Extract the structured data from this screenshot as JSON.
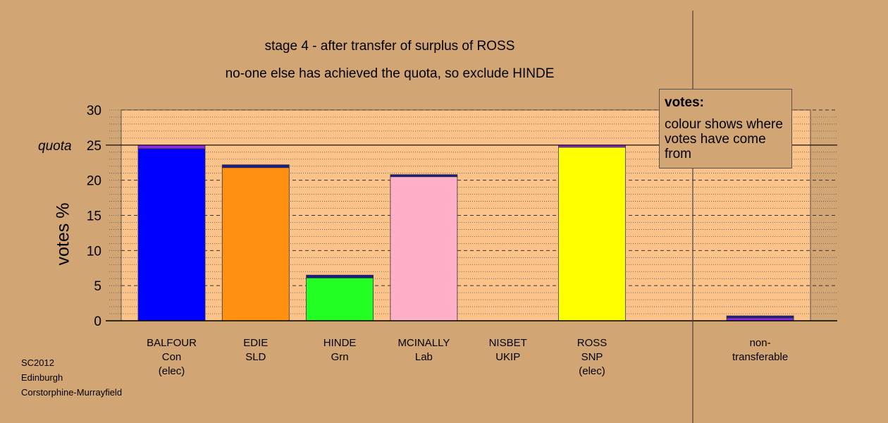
{
  "chart_data": {
    "type": "bar",
    "title": "stage 4 - after transfer of surplus of ROSS",
    "subtitle": "no-one else has achieved the quota, so exclude HINDE",
    "ylabel": "votes %",
    "ylim": [
      0,
      30
    ],
    "yticks": [
      "0",
      "5",
      "10",
      "15",
      "20",
      "25",
      "30"
    ],
    "quota_label": "quota",
    "quota_value": 25,
    "categories": [
      {
        "name": "BALFOUR",
        "party": "Con",
        "note": "(elec)"
      },
      {
        "name": "EDIE",
        "party": "SLD",
        "note": ""
      },
      {
        "name": "HINDE",
        "party": "Grn",
        "note": ""
      },
      {
        "name": "MCINALLY",
        "party": "Lab",
        "note": ""
      },
      {
        "name": "NISBET",
        "party": "UKIP",
        "note": ""
      },
      {
        "name": "ROSS",
        "party": "SNP",
        "note": "(elec)"
      },
      {
        "name": "non-",
        "party": "transferable",
        "note": ""
      }
    ],
    "bars": [
      {
        "segments": [
          {
            "value": 24.5,
            "color": "#0000ff"
          },
          {
            "value": 0.5,
            "color": "#8a2be2"
          }
        ]
      },
      {
        "segments": [
          {
            "value": 21.8,
            "color": "#ff9010"
          },
          {
            "value": 0.4,
            "color": "#1a1a8c"
          }
        ]
      },
      {
        "segments": [
          {
            "value": 6.1,
            "color": "#22ff22"
          },
          {
            "value": 0.4,
            "color": "#1a1a8c"
          }
        ]
      },
      {
        "segments": [
          {
            "value": 20.5,
            "color": "#ffb0c8"
          },
          {
            "value": 0.3,
            "color": "#1a1a8c"
          }
        ]
      },
      {
        "segments": []
      },
      {
        "segments": [
          {
            "value": 24.7,
            "color": "#ffff00"
          },
          {
            "value": 0.3,
            "color": "#8a2be2"
          }
        ]
      },
      {
        "segments": [
          {
            "value": 0.4,
            "color": "#8a2be2"
          },
          {
            "value": 0.3,
            "color": "#1a1a8c"
          }
        ]
      }
    ],
    "legend": {
      "title": "votes:",
      "text": "colour shows where votes have come from"
    },
    "colors": {
      "background": "#d2a574",
      "plot_fill": "#fbc38a"
    }
  },
  "footer": {
    "line1": "SC2012",
    "line2": "Edinburgh",
    "line3": "Corstorphine-Murrayfield"
  }
}
